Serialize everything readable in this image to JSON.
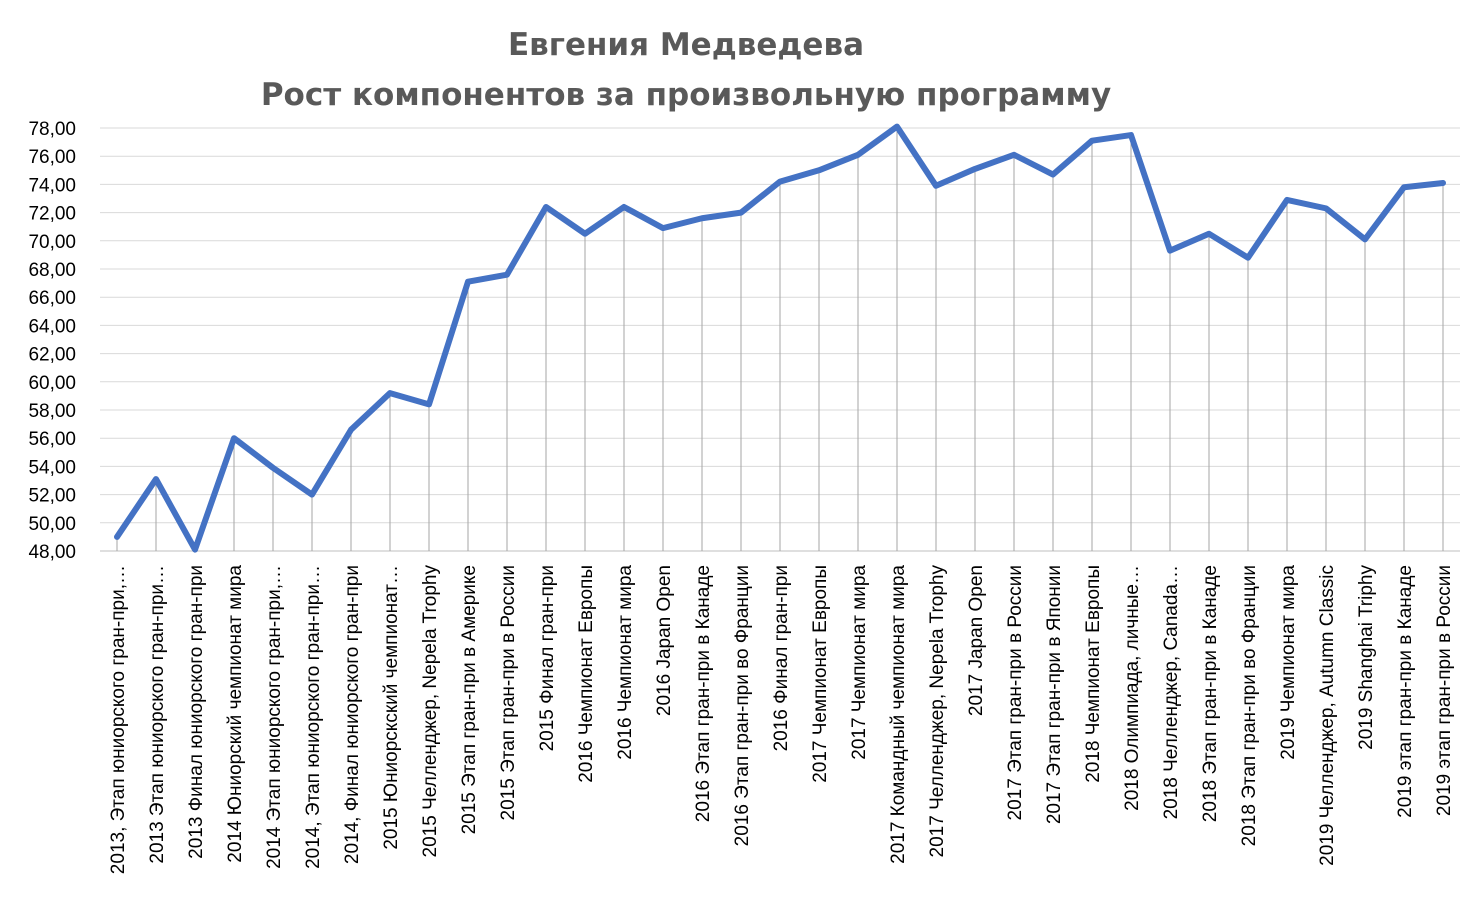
{
  "chart_data": {
    "type": "line",
    "title": "Евгения Медведева",
    "subtitle": "Рост компонентов за произвольную программу",
    "xlabel": "",
    "ylabel": "",
    "ylim": [
      48,
      78
    ],
    "y_ticks": [
      "78,00",
      "76,00",
      "74,00",
      "72,00",
      "70,00",
      "68,00",
      "66,00",
      "64,00",
      "62,00",
      "60,00",
      "58,00",
      "56,00",
      "54,00",
      "52,00",
      "50,00",
      "48,00"
    ],
    "grid": true,
    "legend": "none",
    "line_color": "#4472C4",
    "categories": [
      "2013, Этап юниорского гран-при,…",
      "2013 Этап юниорского гран-при…",
      "2013 Финал юниорского гран-при",
      "2014 Юниорский чемпионат мира",
      "2014 Этап юниорского гран-при,…",
      "2014, Этап юниорского гран-при…",
      "2014, Финал юниорского гран-при",
      "2015 Юниорскский чемпионат…",
      "2015 Челленджер, Nepela Trophy",
      "2015 Этап гран-при в Америке",
      "2015 Этап гран-при в России",
      "2015 Финал гран-при",
      "2016 Чемпионат Европы",
      "2016 Чемпионат мира",
      "2016 Japan Open",
      "2016 Этап гран-при в Канаде",
      "2016 Этап гран-при во Франции",
      "2016 Финал гран-при",
      "2017 Чемпионат Европы",
      "2017 Чемпионат мира",
      "2017 Командный чемпионат мира",
      "2017 Челленджер, Nepela Trophy",
      "2017 Japan Open",
      "2017 Этап гран-при в России",
      "2017 Этап гран-при в Японии",
      "2018 Чемпионат Европы",
      "2018 Олимпиада, личные…",
      "2018 Челленджер, Canada…",
      "2018 Этап гран-при в Канаде",
      "2018 Этап гран-при во Франции",
      "2019 Чемпионат мира",
      "2019 Челленджер, Autumn Classic",
      "2019 Shanghai Triphy",
      "2019 этап гран-при в Канаде",
      "2019 этап гран-при в России"
    ],
    "series": [
      {
        "values": [
          49.0,
          53.1,
          48.1,
          56.0,
          53.9,
          52.0,
          56.6,
          59.2,
          58.4,
          67.1,
          67.6,
          72.4,
          70.5,
          72.4,
          70.9,
          71.6,
          72.0,
          74.2,
          75.0,
          76.1,
          78.1,
          73.9,
          75.1,
          76.1,
          74.7,
          77.1,
          77.5,
          69.3,
          70.5,
          68.8,
          72.9,
          72.3,
          70.1,
          73.8,
          74.1
        ]
      }
    ]
  }
}
